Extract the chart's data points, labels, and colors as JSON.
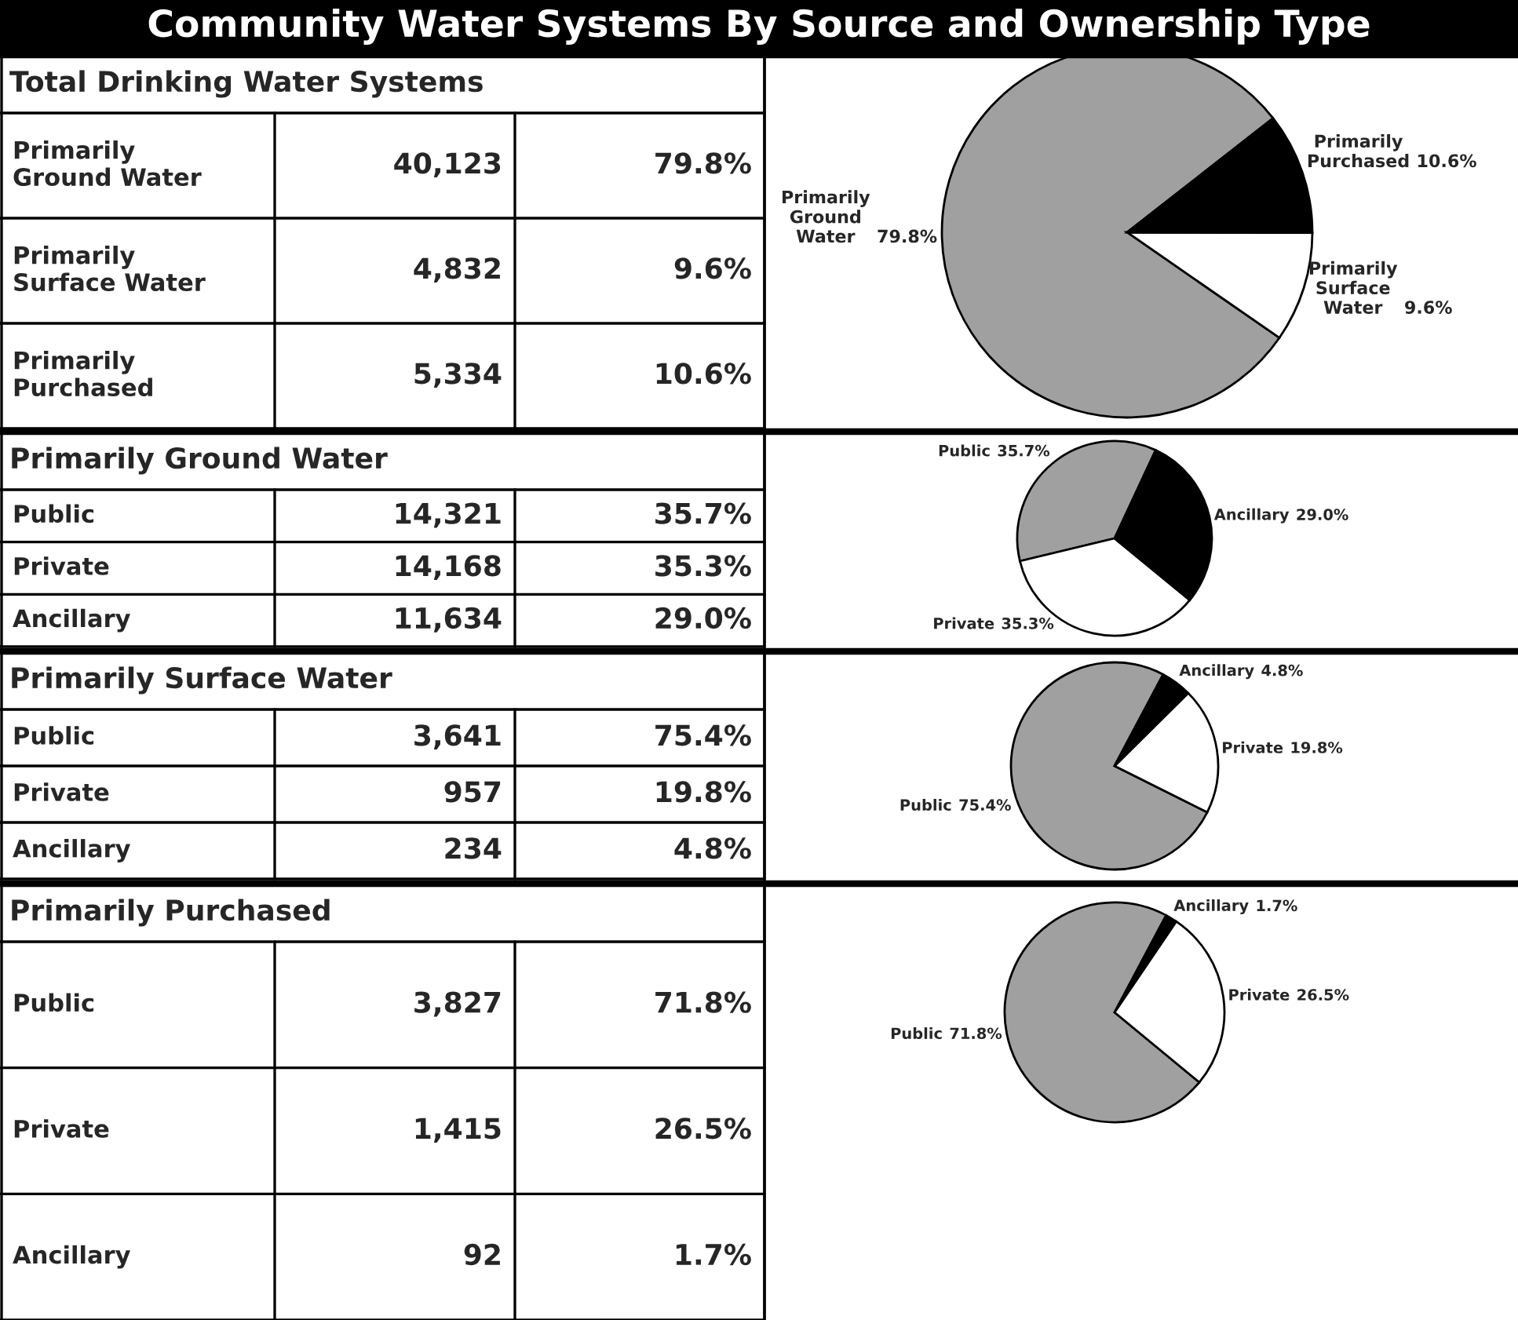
{
  "chart_data": [
    {
      "type": "other",
      "title": "Community Water Systems By Source and Ownership Type",
      "subtitle": "Total Drinking Water Systems",
      "annotations": [
        "Primarily Ground Water",
        "40,123",
        "79.8%",
        "Primarily Surface Water",
        "4,832",
        "9.6%",
        "Primarily Purchased",
        "5,334",
        "10.6%"
      ]
    },
    {
      "type": "pie",
      "categories": [
        "Primarily Ground Water",
        "Primarily Surface Water",
        "Primarily Purchased"
      ],
      "values": [
        79.8,
        9.6,
        10.6
      ],
      "value_labels": [
        "79.8%",
        "9.6%",
        "10.6%"
      ],
      "colors": [
        "#a0a0a0",
        "#ffffff",
        "#000000"
      ]
    },
    {
      "type": "other",
      "title": "Primarily Ground Water",
      "annotations": [
        "Public",
        "14,321",
        "35.7%",
        "Private",
        "14,168",
        "35.3%",
        "Ancillary",
        "11,634",
        "29.0%"
      ]
    },
    {
      "type": "pie",
      "categories": [
        "Public",
        "Private",
        "Ancillary"
      ],
      "values": [
        35.7,
        35.3,
        29.0
      ],
      "value_labels": [
        "35.7%",
        "35.3%",
        "29.0%"
      ],
      "colors": [
        "#a0a0a0",
        "#ffffff",
        "#000000"
      ]
    },
    {
      "type": "other",
      "title": "Primarily Surface Water",
      "annotations": [
        "Public",
        "3,641",
        "75.4%",
        "Private",
        "957",
        "19.8%",
        "Ancillary",
        "234",
        "4.8%"
      ]
    },
    {
      "type": "pie",
      "categories": [
        "Public",
        "Private",
        "Ancillary"
      ],
      "values": [
        75.4,
        19.8,
        4.8
      ],
      "value_labels": [
        "75.4%",
        "19.8%",
        "4.8%"
      ],
      "colors": [
        "#a0a0a0",
        "#ffffff",
        "#000000"
      ]
    },
    {
      "type": "other",
      "title": "Primarily Purchased",
      "annotations": [
        "Public",
        "3,827",
        "71.8%",
        "Private",
        "1,415",
        "26.5%",
        "Ancillary",
        "92",
        "1.7%"
      ]
    },
    {
      "type": "pie",
      "categories": [
        "Public",
        "Private",
        "Ancillary"
      ],
      "values": [
        71.8,
        26.5,
        1.7
      ],
      "value_labels": [
        "71.8%",
        "26.5%",
        "1.7%"
      ],
      "colors": [
        "#a0a0a0",
        "#ffffff",
        "#000000"
      ]
    }
  ]
}
